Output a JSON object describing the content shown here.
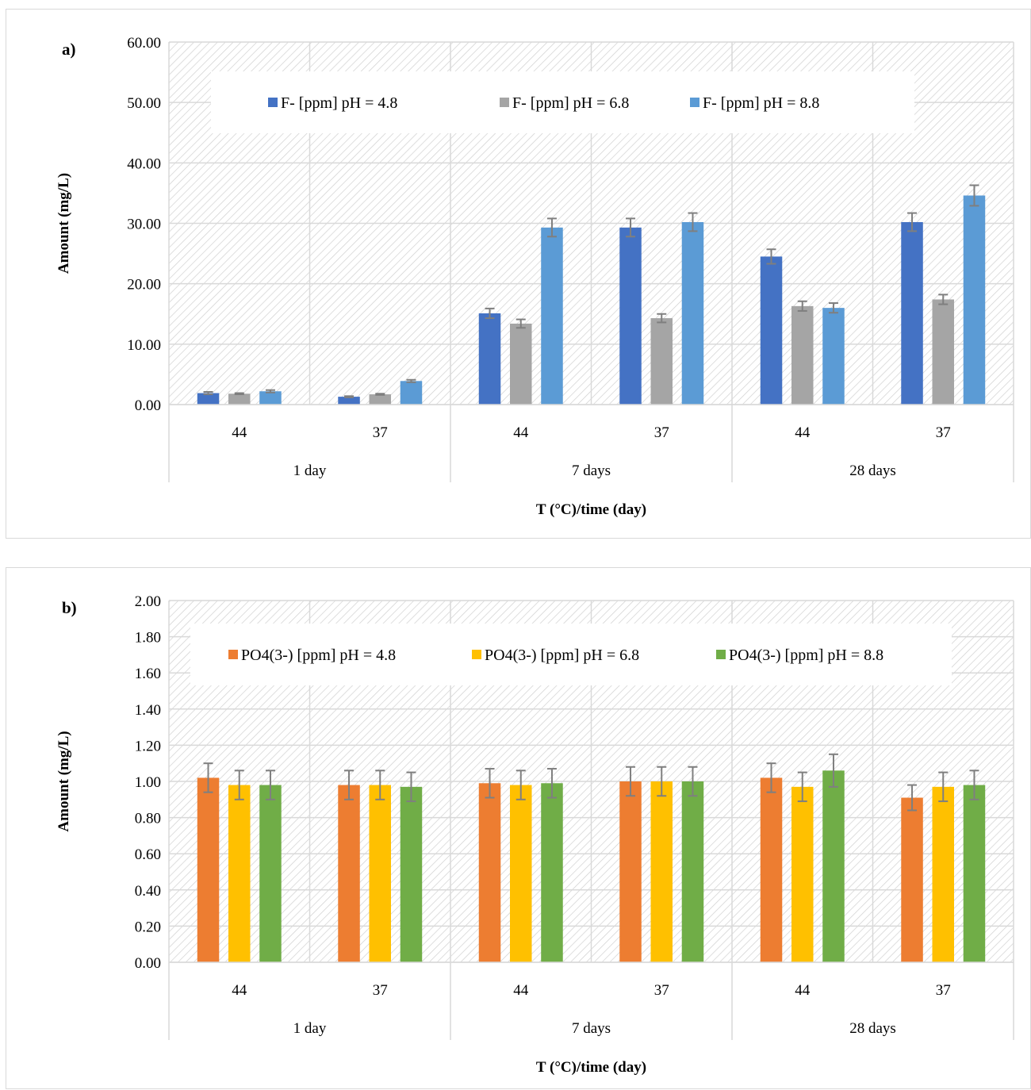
{
  "chart_data": [
    {
      "type": "bar",
      "panel_label": "a)",
      "xlabel": "T (°C)/time (day)",
      "ylabel": "Amount (mg/L)",
      "ylim": [
        0,
        60
      ],
      "yticks": [
        "0.00",
        "10.00",
        "20.00",
        "30.00",
        "40.00",
        "50.00",
        "60.00"
      ],
      "categories": [
        "44",
        "37",
        "44",
        "37",
        "44",
        "37"
      ],
      "groups": [
        "1 day",
        "7 days",
        "28 days"
      ],
      "grid": true,
      "legend_position": "top",
      "series": [
        {
          "name": "F- [ppm] pH = 4.8",
          "color": "#4472c4",
          "values": [
            1.9,
            1.3,
            15.1,
            29.3,
            24.5,
            30.2
          ],
          "errors": [
            0.2,
            0.1,
            0.8,
            1.5,
            1.2,
            1.5
          ]
        },
        {
          "name": "F- [ppm] pH = 6.8",
          "color": "#a5a5a5",
          "values": [
            1.8,
            1.7,
            13.4,
            14.3,
            16.3,
            17.4
          ],
          "errors": [
            0.1,
            0.1,
            0.7,
            0.7,
            0.8,
            0.8
          ]
        },
        {
          "name": "F- [ppm] pH = 8.8",
          "color": "#5b9bd5",
          "values": [
            2.2,
            3.9,
            29.3,
            30.2,
            16.0,
            34.6
          ],
          "errors": [
            0.2,
            0.2,
            1.5,
            1.5,
            0.8,
            1.7
          ]
        }
      ]
    },
    {
      "type": "bar",
      "panel_label": "b)",
      "xlabel": "T (°C)/time (day)",
      "ylabel": "Amount (mg/L)",
      "ylim": [
        0,
        2
      ],
      "yticks": [
        "0.00",
        "0.20",
        "0.40",
        "0.60",
        "0.80",
        "1.00",
        "1.20",
        "1.40",
        "1.60",
        "1.80",
        "2.00"
      ],
      "categories": [
        "44",
        "37",
        "44",
        "37",
        "44",
        "37"
      ],
      "groups": [
        "1 day",
        "7 days",
        "28 days"
      ],
      "grid": true,
      "legend_position": "top",
      "series": [
        {
          "name": "PO4(3-) [ppm] pH = 4.8",
          "color": "#ed7d31",
          "values": [
            1.02,
            0.98,
            0.99,
            1.0,
            1.02,
            0.91
          ],
          "errors": [
            0.08,
            0.08,
            0.08,
            0.08,
            0.08,
            0.07
          ]
        },
        {
          "name": "PO4(3-) [ppm] pH = 6.8",
          "color": "#ffc000",
          "values": [
            0.98,
            0.98,
            0.98,
            1.0,
            0.97,
            0.97
          ],
          "errors": [
            0.08,
            0.08,
            0.08,
            0.08,
            0.08,
            0.08
          ]
        },
        {
          "name": "PO4(3-) [ppm] pH = 8.8",
          "color": "#70ad47",
          "values": [
            0.98,
            0.97,
            0.99,
            1.0,
            1.06,
            0.98
          ],
          "errors": [
            0.08,
            0.08,
            0.08,
            0.08,
            0.09,
            0.08
          ]
        }
      ]
    }
  ]
}
